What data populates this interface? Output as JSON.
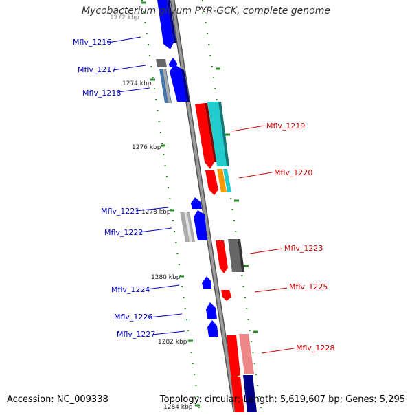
{
  "title": "Mycobacterium gilvum PYR-GCK, complete genome",
  "accession": "Accession: NC_009338",
  "summary": "Topology: circular; Length: 5,619,607 bp; Genes: 5,295",
  "colors": {
    "backbone": "#8a8a8a",
    "tick": "#228B22",
    "left_label": "#0000cc",
    "right_label": "#cc0000",
    "forward_blue": "#0000ff",
    "reverse_red": "#ff0000",
    "gray": "#999999",
    "cyan": "#22cccc",
    "orange": "#ff9900",
    "pink": "#ee8888",
    "navy": "#000088"
  },
  "kbp_labels": [
    "1272 kbp",
    "1274 kbp",
    "1276 kbp",
    "1278 kbp",
    "1280 kbp",
    "1282 kbp",
    "1284 kbp"
  ],
  "genes": [
    {
      "name": "Mflv_1216",
      "strand": "left"
    },
    {
      "name": "Mflv_1217",
      "strand": "left"
    },
    {
      "name": "Mflv_1218",
      "strand": "left"
    },
    {
      "name": "Mflv_1219",
      "strand": "right"
    },
    {
      "name": "Mflv_1220",
      "strand": "right"
    },
    {
      "name": "Mflv_1221",
      "strand": "left"
    },
    {
      "name": "Mflv_1222",
      "strand": "left"
    },
    {
      "name": "Mflv_1223",
      "strand": "right"
    },
    {
      "name": "Mflv_1224",
      "strand": "left"
    },
    {
      "name": "Mflv_1225",
      "strand": "right"
    },
    {
      "name": "Mflv_1226",
      "strand": "left"
    },
    {
      "name": "Mflv_1227",
      "strand": "left"
    },
    {
      "name": "Mflv_1228",
      "strand": "right"
    }
  ]
}
